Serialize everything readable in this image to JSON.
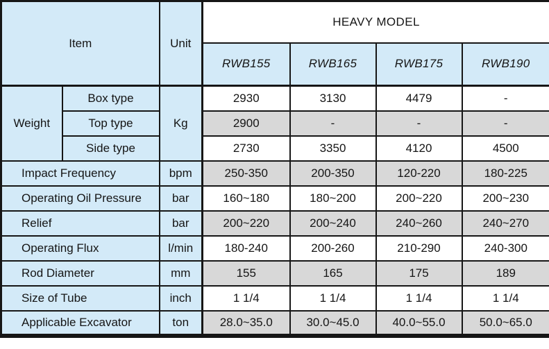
{
  "colors": {
    "header_blue": "#d3eaf8",
    "shade_gray": "#d8d8d8",
    "border_black": "#161616",
    "cell_white": "#ffffff"
  },
  "table": {
    "item_label": "Item",
    "unit_label": "Unit",
    "group_header": "HEAVY MODEL",
    "models": [
      "RWB155",
      "RWB165",
      "RWB175",
      "RWB190"
    ],
    "weight": {
      "label": "Weight",
      "unit": "Kg",
      "rows": [
        {
          "label": "Box type",
          "values": [
            "2930",
            "3130",
            "4479",
            "-"
          ],
          "shade": false
        },
        {
          "label": "Top type",
          "values": [
            "2900",
            "-",
            "-",
            "-"
          ],
          "shade": true
        },
        {
          "label": "Side type",
          "values": [
            "2730",
            "3350",
            "4120",
            "4500"
          ],
          "shade": false
        }
      ]
    },
    "rows": [
      {
        "label": "Impact Frequency",
        "unit": "bpm",
        "values": [
          "250-350",
          "200-350",
          "120-220",
          "180-225"
        ],
        "shade": true
      },
      {
        "label": "Operating Oil Pressure",
        "unit": "bar",
        "values": [
          "160~180",
          "180~200",
          "200~220",
          "200~230"
        ],
        "shade": false
      },
      {
        "label": "Relief",
        "unit": "bar",
        "values": [
          "200~220",
          "200~240",
          "240~260",
          "240~270"
        ],
        "shade": true
      },
      {
        "label": "Operating Flux",
        "unit": "l/min",
        "values": [
          "180-240",
          "200-260",
          "210-290",
          "240-300"
        ],
        "shade": false
      },
      {
        "label": "Rod Diameter",
        "unit": "mm",
        "values": [
          "155",
          "165",
          "175",
          "189"
        ],
        "shade": true
      },
      {
        "label": "Size of Tube",
        "unit": "inch",
        "values": [
          "1 1/4",
          "1 1/4",
          "1 1/4",
          "1 1/4"
        ],
        "shade": false
      },
      {
        "label": "Applicable Excavator",
        "unit": "ton",
        "values": [
          "28.0~35.0",
          "30.0~45.0",
          "40.0~55.0",
          "50.0~65.0"
        ],
        "shade": true
      }
    ]
  },
  "chart_data": {
    "type": "table",
    "title": "HEAVY MODEL",
    "columns": [
      "Item",
      "Unit",
      "RWB155",
      "RWB165",
      "RWB175",
      "RWB190"
    ],
    "rows": [
      [
        "Weight / Box type",
        "Kg",
        "2930",
        "3130",
        "4479",
        "-"
      ],
      [
        "Weight / Top type",
        "Kg",
        "2900",
        "-",
        "-",
        "-"
      ],
      [
        "Weight / Side type",
        "Kg",
        "2730",
        "3350",
        "4120",
        "4500"
      ],
      [
        "Impact Frequency",
        "bpm",
        "250-350",
        "200-350",
        "120-220",
        "180-225"
      ],
      [
        "Operating Oil Pressure",
        "bar",
        "160~180",
        "180~200",
        "200~220",
        "200~230"
      ],
      [
        "Relief",
        "bar",
        "200~220",
        "200~240",
        "240~260",
        "240~270"
      ],
      [
        "Operating Flux",
        "l/min",
        "180-240",
        "200-260",
        "210-290",
        "240-300"
      ],
      [
        "Rod Diameter",
        "mm",
        "155",
        "165",
        "175",
        "189"
      ],
      [
        "Size of Tube",
        "inch",
        "1 1/4",
        "1 1/4",
        "1 1/4",
        "1 1/4"
      ],
      [
        "Applicable Excavator",
        "ton",
        "28.0~35.0",
        "30.0~45.0",
        "40.0~55.0",
        "50.0~65.0"
      ]
    ]
  }
}
